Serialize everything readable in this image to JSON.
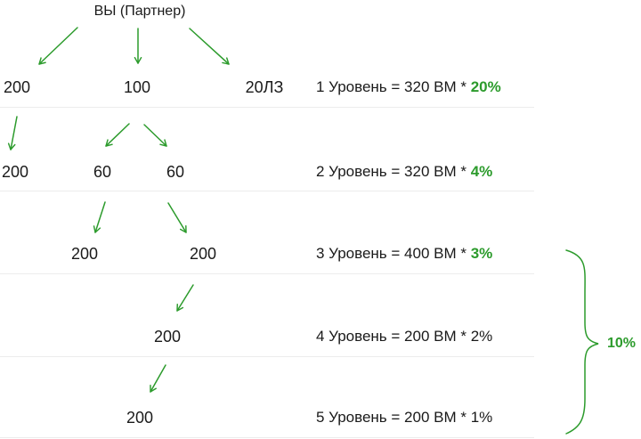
{
  "root": "ВЫ (Партнер)",
  "nodes": {
    "l1": [
      "200",
      "100",
      "20ЛЗ"
    ],
    "l2": [
      "200",
      "60",
      "60"
    ],
    "l3": [
      "200",
      "200"
    ],
    "l4": [
      "200"
    ],
    "l5": [
      "200"
    ]
  },
  "levels": [
    {
      "text": "1 Уровень = 320 ВМ * ",
      "pct": "20%",
      "highlight": true
    },
    {
      "text": "2 Уровень = 320 ВМ * ",
      "pct": "4%",
      "highlight": true
    },
    {
      "text": "3 Уровень = 400 ВМ * ",
      "pct": "3%",
      "highlight": true
    },
    {
      "text": "4 Уровень = 200 ВМ * ",
      "pct": "2%",
      "highlight": false
    },
    {
      "text": "5 Уровень = 200 ВМ * ",
      "pct": "1%",
      "highlight": false
    }
  ],
  "total": "10%",
  "colors": {
    "arrow": "#2c9b2c",
    "highlight": "#2c9b2c",
    "separator": "#ececec"
  }
}
